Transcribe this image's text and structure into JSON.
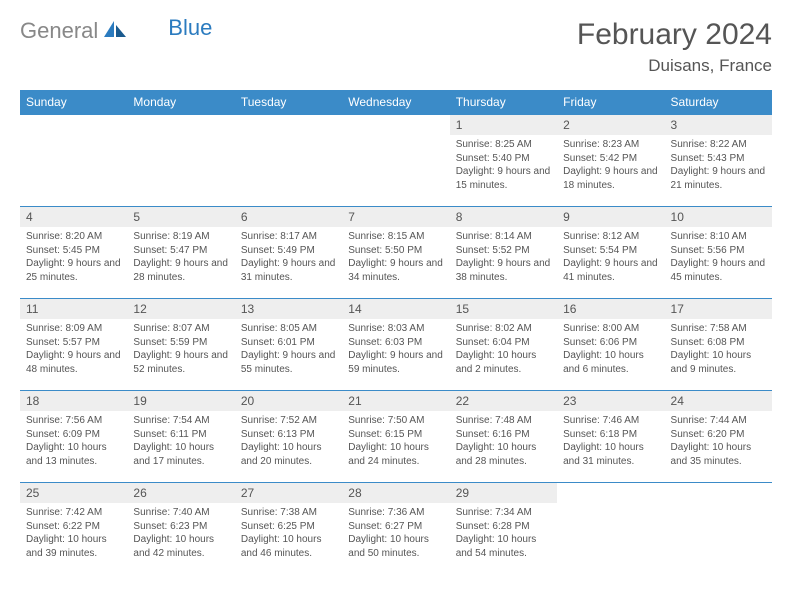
{
  "brand": {
    "part1": "General",
    "part2": "Blue"
  },
  "title": "February 2024",
  "location": "Duisans, France",
  "colors": {
    "header_bg": "#3b8bc8",
    "header_text": "#ffffff",
    "border": "#3b8bc8",
    "daynum_bg": "#eeeeee",
    "text": "#555555",
    "logo_gray": "#888888",
    "logo_blue": "#2b7bbf",
    "background": "#ffffff"
  },
  "typography": {
    "title_fontsize": 30,
    "location_fontsize": 17,
    "dayhead_fontsize": 12,
    "daynum_fontsize": 12,
    "body_fontsize": 10
  },
  "day_headers": [
    "Sunday",
    "Monday",
    "Tuesday",
    "Wednesday",
    "Thursday",
    "Friday",
    "Saturday"
  ],
  "weeks": [
    [
      null,
      null,
      null,
      null,
      {
        "n": "1",
        "sunrise": "Sunrise: 8:25 AM",
        "sunset": "Sunset: 5:40 PM",
        "daylight": "Daylight: 9 hours and 15 minutes."
      },
      {
        "n": "2",
        "sunrise": "Sunrise: 8:23 AM",
        "sunset": "Sunset: 5:42 PM",
        "daylight": "Daylight: 9 hours and 18 minutes."
      },
      {
        "n": "3",
        "sunrise": "Sunrise: 8:22 AM",
        "sunset": "Sunset: 5:43 PM",
        "daylight": "Daylight: 9 hours and 21 minutes."
      }
    ],
    [
      {
        "n": "4",
        "sunrise": "Sunrise: 8:20 AM",
        "sunset": "Sunset: 5:45 PM",
        "daylight": "Daylight: 9 hours and 25 minutes."
      },
      {
        "n": "5",
        "sunrise": "Sunrise: 8:19 AM",
        "sunset": "Sunset: 5:47 PM",
        "daylight": "Daylight: 9 hours and 28 minutes."
      },
      {
        "n": "6",
        "sunrise": "Sunrise: 8:17 AM",
        "sunset": "Sunset: 5:49 PM",
        "daylight": "Daylight: 9 hours and 31 minutes."
      },
      {
        "n": "7",
        "sunrise": "Sunrise: 8:15 AM",
        "sunset": "Sunset: 5:50 PM",
        "daylight": "Daylight: 9 hours and 34 minutes."
      },
      {
        "n": "8",
        "sunrise": "Sunrise: 8:14 AM",
        "sunset": "Sunset: 5:52 PM",
        "daylight": "Daylight: 9 hours and 38 minutes."
      },
      {
        "n": "9",
        "sunrise": "Sunrise: 8:12 AM",
        "sunset": "Sunset: 5:54 PM",
        "daylight": "Daylight: 9 hours and 41 minutes."
      },
      {
        "n": "10",
        "sunrise": "Sunrise: 8:10 AM",
        "sunset": "Sunset: 5:56 PM",
        "daylight": "Daylight: 9 hours and 45 minutes."
      }
    ],
    [
      {
        "n": "11",
        "sunrise": "Sunrise: 8:09 AM",
        "sunset": "Sunset: 5:57 PM",
        "daylight": "Daylight: 9 hours and 48 minutes."
      },
      {
        "n": "12",
        "sunrise": "Sunrise: 8:07 AM",
        "sunset": "Sunset: 5:59 PM",
        "daylight": "Daylight: 9 hours and 52 minutes."
      },
      {
        "n": "13",
        "sunrise": "Sunrise: 8:05 AM",
        "sunset": "Sunset: 6:01 PM",
        "daylight": "Daylight: 9 hours and 55 minutes."
      },
      {
        "n": "14",
        "sunrise": "Sunrise: 8:03 AM",
        "sunset": "Sunset: 6:03 PM",
        "daylight": "Daylight: 9 hours and 59 minutes."
      },
      {
        "n": "15",
        "sunrise": "Sunrise: 8:02 AM",
        "sunset": "Sunset: 6:04 PM",
        "daylight": "Daylight: 10 hours and 2 minutes."
      },
      {
        "n": "16",
        "sunrise": "Sunrise: 8:00 AM",
        "sunset": "Sunset: 6:06 PM",
        "daylight": "Daylight: 10 hours and 6 minutes."
      },
      {
        "n": "17",
        "sunrise": "Sunrise: 7:58 AM",
        "sunset": "Sunset: 6:08 PM",
        "daylight": "Daylight: 10 hours and 9 minutes."
      }
    ],
    [
      {
        "n": "18",
        "sunrise": "Sunrise: 7:56 AM",
        "sunset": "Sunset: 6:09 PM",
        "daylight": "Daylight: 10 hours and 13 minutes."
      },
      {
        "n": "19",
        "sunrise": "Sunrise: 7:54 AM",
        "sunset": "Sunset: 6:11 PM",
        "daylight": "Daylight: 10 hours and 17 minutes."
      },
      {
        "n": "20",
        "sunrise": "Sunrise: 7:52 AM",
        "sunset": "Sunset: 6:13 PM",
        "daylight": "Daylight: 10 hours and 20 minutes."
      },
      {
        "n": "21",
        "sunrise": "Sunrise: 7:50 AM",
        "sunset": "Sunset: 6:15 PM",
        "daylight": "Daylight: 10 hours and 24 minutes."
      },
      {
        "n": "22",
        "sunrise": "Sunrise: 7:48 AM",
        "sunset": "Sunset: 6:16 PM",
        "daylight": "Daylight: 10 hours and 28 minutes."
      },
      {
        "n": "23",
        "sunrise": "Sunrise: 7:46 AM",
        "sunset": "Sunset: 6:18 PM",
        "daylight": "Daylight: 10 hours and 31 minutes."
      },
      {
        "n": "24",
        "sunrise": "Sunrise: 7:44 AM",
        "sunset": "Sunset: 6:20 PM",
        "daylight": "Daylight: 10 hours and 35 minutes."
      }
    ],
    [
      {
        "n": "25",
        "sunrise": "Sunrise: 7:42 AM",
        "sunset": "Sunset: 6:22 PM",
        "daylight": "Daylight: 10 hours and 39 minutes."
      },
      {
        "n": "26",
        "sunrise": "Sunrise: 7:40 AM",
        "sunset": "Sunset: 6:23 PM",
        "daylight": "Daylight: 10 hours and 42 minutes."
      },
      {
        "n": "27",
        "sunrise": "Sunrise: 7:38 AM",
        "sunset": "Sunset: 6:25 PM",
        "daylight": "Daylight: 10 hours and 46 minutes."
      },
      {
        "n": "28",
        "sunrise": "Sunrise: 7:36 AM",
        "sunset": "Sunset: 6:27 PM",
        "daylight": "Daylight: 10 hours and 50 minutes."
      },
      {
        "n": "29",
        "sunrise": "Sunrise: 7:34 AM",
        "sunset": "Sunset: 6:28 PM",
        "daylight": "Daylight: 10 hours and 54 minutes."
      },
      null,
      null
    ]
  ]
}
